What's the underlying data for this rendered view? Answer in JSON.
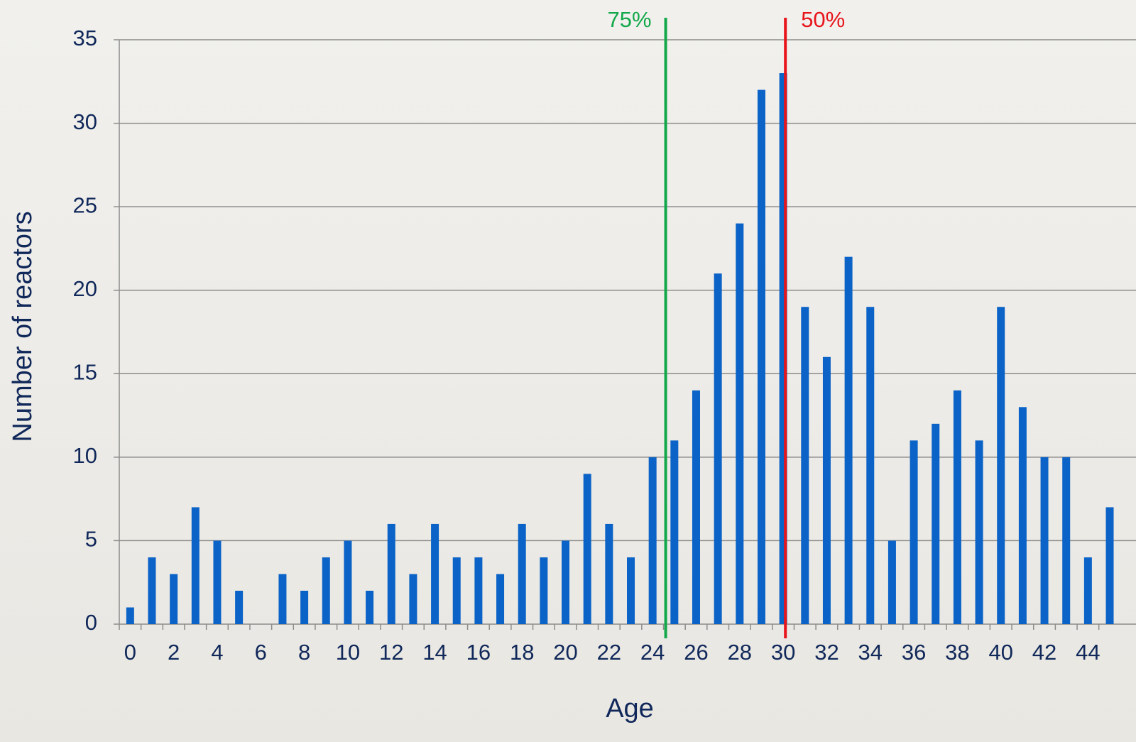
{
  "chart_data": {
    "type": "bar",
    "x_label": "Age",
    "y_label": "Number of reactors",
    "categories": [
      0,
      null,
      2,
      null,
      4,
      null,
      6,
      null,
      8,
      null,
      10,
      null,
      12,
      null,
      14,
      null,
      16,
      null,
      18,
      null,
      20,
      null,
      22,
      null,
      24,
      null,
      26,
      null,
      28,
      null,
      30,
      null,
      32,
      null,
      34,
      null,
      36,
      null,
      38,
      null,
      40,
      null,
      42,
      null,
      44,
      null
    ],
    "values": [
      1,
      4,
      3,
      7,
      5,
      2,
      0,
      3,
      2,
      4,
      5,
      2,
      6,
      3,
      6,
      4,
      4,
      3,
      6,
      4,
      5,
      9,
      6,
      4,
      10,
      11,
      14,
      21,
      24,
      32,
      33,
      19,
      16,
      22,
      19,
      5,
      11,
      12,
      14,
      11,
      19,
      13,
      10,
      10,
      4,
      7
    ],
    "color": "#0b63c7",
    "ylim": [
      0,
      35
    ],
    "yticks": [
      0,
      5,
      10,
      15,
      20,
      25,
      30,
      35
    ],
    "grid": true,
    "annotations": [
      {
        "label": "75%",
        "x": 24.6,
        "color": "#12a84a"
      },
      {
        "label": "50%",
        "x": 30.1,
        "color": "#e8141b"
      }
    ]
  }
}
